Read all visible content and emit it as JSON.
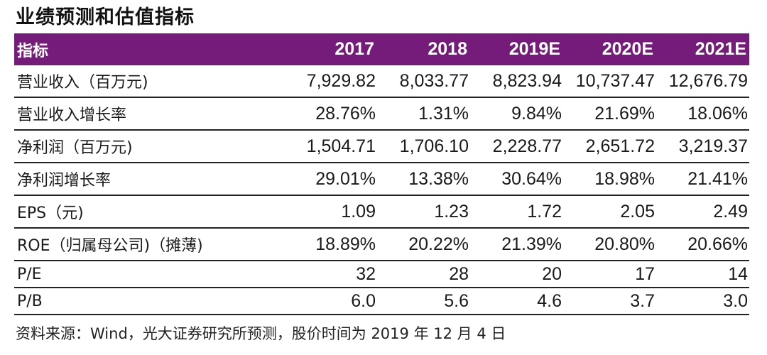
{
  "title": "业绩预测和估值指标",
  "colors": {
    "header_bg": "#751c7a",
    "header_text": "#ffffff"
  },
  "table": {
    "headers": [
      "指标",
      "2017",
      "2018",
      "2019E",
      "2020E",
      "2021E"
    ],
    "rows": [
      {
        "label": "营业收入（百万元)",
        "values": [
          "7,929.82",
          "8,033.77",
          "8,823.94",
          "10,737.47",
          "12,676.79"
        ]
      },
      {
        "label": "营业收入增长率",
        "values": [
          "28.76%",
          "1.31%",
          "9.84%",
          "21.69%",
          "18.06%"
        ]
      },
      {
        "label": "净利润（百万元)",
        "values": [
          "1,504.71",
          "1,706.10",
          "2,228.77",
          "2,651.72",
          "3,219.37"
        ]
      },
      {
        "label": "净利润增长率",
        "values": [
          "29.01%",
          "13.38%",
          "30.64%",
          "18.98%",
          "21.41%"
        ]
      },
      {
        "label": "EPS（元)",
        "values": [
          "1.09",
          "1.23",
          "1.72",
          "2.05",
          "2.49"
        ]
      },
      {
        "label": "ROE（归属母公司)（摊薄)",
        "values": [
          "18.89%",
          "20.22%",
          "21.39%",
          "20.80%",
          "20.66%"
        ]
      },
      {
        "label": "P/E",
        "values": [
          "32",
          "28",
          "20",
          "17",
          "14"
        ]
      },
      {
        "label": "P/B",
        "values": [
          "6.0",
          "5.6",
          "4.6",
          "3.7",
          "3.0"
        ]
      }
    ]
  },
  "footer": "资料来源：Wind，光大证券研究所预测，股价时间为 2019 年 12 月 4 日"
}
